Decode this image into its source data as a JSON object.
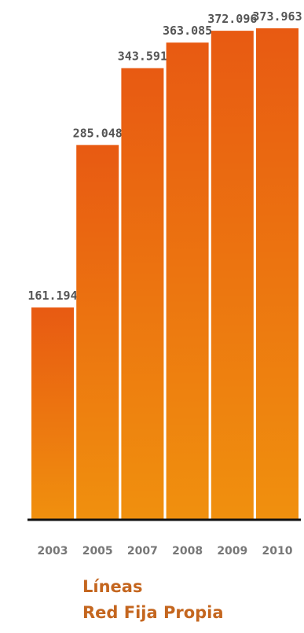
{
  "chart_data": {
    "type": "bar",
    "title": [
      "Líneas",
      "Red Fija Propia"
    ],
    "categories": [
      "2003",
      "2005",
      "2007",
      "2008",
      "2009",
      "2010"
    ],
    "values": [
      161194,
      285048,
      343591,
      363085,
      372096,
      373963
    ],
    "value_labels": [
      "161.194",
      "285.048",
      "343.591",
      "363.085",
      "372.096",
      "373.963"
    ],
    "color": [
      "#e85a12",
      "#f0900e"
    ]
  }
}
